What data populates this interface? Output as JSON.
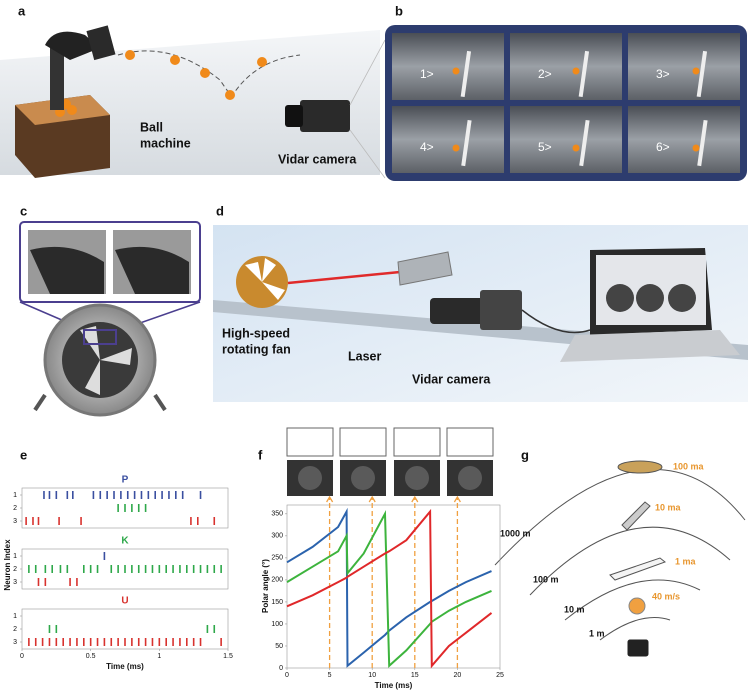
{
  "panel_labels": [
    "a",
    "b",
    "c",
    "d",
    "e",
    "f",
    "g"
  ],
  "panel_a": {
    "ball_machine": [
      "Ball",
      "machine"
    ],
    "camera": "Vidar camera"
  },
  "panel_b": {
    "frames": [
      "1>",
      "2>",
      "3>",
      "4>",
      "5>",
      "6>"
    ]
  },
  "panel_d": {
    "fan": [
      "High-speed",
      "rotating fan"
    ],
    "laser": "Laser",
    "camera": "Vidar camera"
  },
  "panel_g": {
    "distances": [
      "1000 m",
      "100 m",
      "10 m",
      "1 m"
    ],
    "speeds": [
      "100 ma",
      "10 ma",
      "1 ma",
      "40 m/s"
    ]
  },
  "chart_data": [
    {
      "type": "raster",
      "xlabel": "Time (ms)",
      "ylabel": "Neuron Index",
      "xlim": [
        0,
        1.5
      ],
      "xticks": [
        0,
        0.5,
        1,
        1.5
      ],
      "yticks": [
        1,
        2,
        3
      ],
      "neuron_colors": [
        "#3a4fa0",
        "#2ea84a",
        "#d8322e"
      ],
      "panels": [
        {
          "title": "P",
          "color": "#3a4fa0",
          "spikes": [
            [
              0.16,
              0.2,
              0.25,
              0.33,
              0.37,
              0.52,
              0.57,
              0.62,
              0.67,
              0.72,
              0.77,
              0.82,
              0.87,
              0.92,
              0.97,
              1.02,
              1.07,
              1.12,
              1.17,
              1.3
            ],
            [
              0.7,
              0.75,
              0.8,
              0.85,
              0.9
            ],
            [
              0.03,
              0.08,
              0.12,
              0.27,
              0.43,
              1.23,
              1.28,
              1.4
            ]
          ]
        },
        {
          "title": "K",
          "color": "#2ea84a",
          "spikes": [
            [
              0.6
            ],
            [
              0.05,
              0.1,
              0.17,
              0.22,
              0.28,
              0.33,
              0.45,
              0.5,
              0.55,
              0.65,
              0.7,
              0.75,
              0.8,
              0.85,
              0.9,
              0.95,
              1.0,
              1.05,
              1.1,
              1.15,
              1.2,
              1.25,
              1.3,
              1.35,
              1.4,
              1.45
            ],
            [
              0.12,
              0.17,
              0.35,
              0.4
            ]
          ]
        },
        {
          "title": "U",
          "color": "#d8322e",
          "spikes": [
            [],
            [
              0.2,
              0.25,
              1.35,
              1.4
            ],
            [
              0.05,
              0.1,
              0.15,
              0.2,
              0.25,
              0.3,
              0.35,
              0.4,
              0.45,
              0.5,
              0.55,
              0.6,
              0.65,
              0.7,
              0.75,
              0.8,
              0.85,
              0.9,
              0.95,
              1.0,
              1.05,
              1.1,
              1.15,
              1.2,
              1.25,
              1.3,
              1.45
            ]
          ]
        }
      ]
    },
    {
      "type": "line",
      "xlabel": "Time (ms)",
      "ylabel": "Polar angle (°)",
      "x": [
        0,
        3,
        6,
        7,
        7.1,
        9,
        11.5,
        12,
        14,
        16.8,
        17,
        19,
        21,
        24
      ],
      "xlim": [
        0,
        25
      ],
      "xticks": [
        0,
        5,
        10,
        15,
        20,
        25
      ],
      "ylim": [
        0,
        370
      ],
      "yticks": [
        0,
        50,
        100,
        150,
        200,
        250,
        300,
        350
      ],
      "markers": [
        5,
        10,
        15,
        20
      ],
      "marker_color": "#f0a040",
      "series": [
        {
          "color": "#2b63ad",
          "values": [
            240,
            275,
            320,
            355,
            5,
            35,
            75,
            85,
            115,
            150,
            152,
            175,
            195,
            220
          ]
        },
        {
          "color": "#3db43d",
          "values": [
            195,
            230,
            265,
            300,
            215,
            260,
            350,
            5,
            40,
            100,
            105,
            130,
            150,
            175
          ]
        },
        {
          "color": "#e0282a",
          "values": [
            140,
            165,
            195,
            205,
            207,
            230,
            260,
            265,
            290,
            355,
            5,
            50,
            80,
            125
          ]
        }
      ]
    }
  ]
}
